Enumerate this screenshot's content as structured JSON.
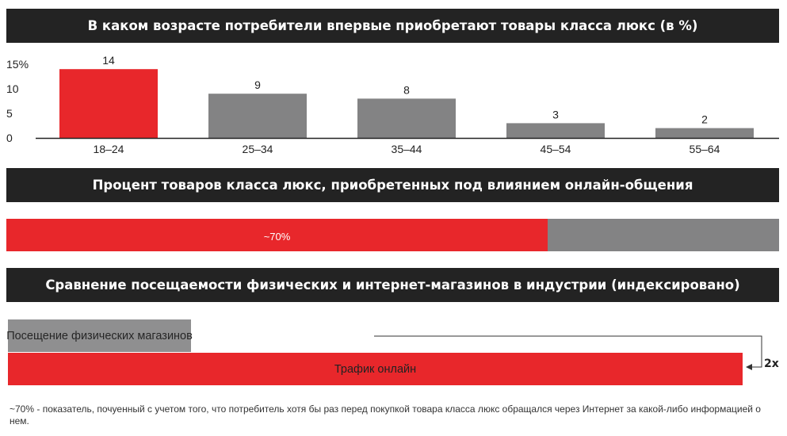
{
  "titles": {
    "age": "В каком возрасте потребители впервые приобретают товары класса люкс (в %)",
    "online": "Процент товаров класса люкс, приобретенных под влиянием онлайн-общения",
    "traffic": "Сравнение посещаемости физических и интернет-магазинов в индустрии (индексировано)"
  },
  "chart_data": [
    {
      "type": "bar",
      "title": "В каком возрасте потребители впервые приобретают товары класса люкс (в %)",
      "categories": [
        "18–24",
        "25–34",
        "35–44",
        "45–54",
        "55–64"
      ],
      "values": [
        14,
        9,
        8,
        3,
        2
      ],
      "value_labels": [
        "14",
        "9",
        "8",
        "3",
        "2"
      ],
      "yticks": [
        0,
        5,
        10,
        15
      ],
      "ytick_labels": [
        "0",
        "5",
        "10",
        "15%"
      ],
      "ylim": [
        0,
        15
      ],
      "highlight_index": 0,
      "colors": {
        "highlight": "#e8272b",
        "default": "#838384",
        "axis": "#222222"
      }
    },
    {
      "type": "bar",
      "title": "Процент товаров класса люкс, приобретенных под влиянием онлайн-общения",
      "values": [
        70
      ],
      "max": 100,
      "label": "~70%",
      "colors": {
        "fill": "#e8272b",
        "rest": "#838384"
      }
    },
    {
      "type": "bar",
      "title": "Сравнение посещаемости физических и интернет-магазинов в индустрии (индексировано)",
      "categories": [
        "Посещение физических магазинов",
        "Трафик онлайн"
      ],
      "values": [
        1,
        2
      ],
      "multiplier_label": "2x",
      "colors": {
        "store": "#8f8f90",
        "online": "#e8272b"
      }
    }
  ],
  "footnote": "~70% - показатель, почуенный с учетом того, что потребитель хотя бы раз перед покупкой товара класса люкс обращался через Интернет за какой-либо информацией о нем."
}
